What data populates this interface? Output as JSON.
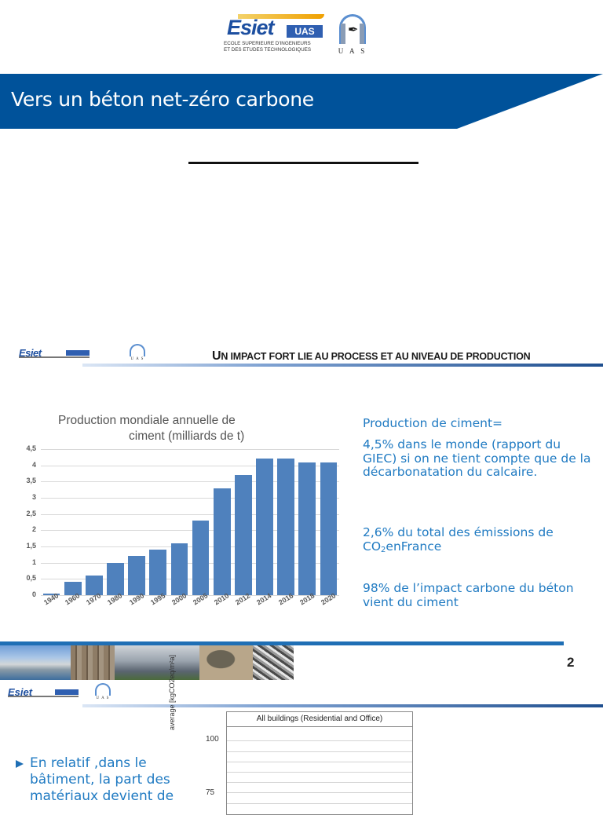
{
  "slide1": {
    "logo_esiet": {
      "word": "Esiet",
      "badge": "UAS",
      "subtitle_line1": "ECOLE SUPERIEURE D'INGENIEURS",
      "subtitle_line2": "ET DES ETUDES TECHNOLOGIQUES"
    },
    "logo_uas": {
      "letters": "U A S"
    },
    "title": "Vers un béton net-zéro carbone",
    "colors": {
      "title_band": "#00529a",
      "title_text": "#ffffff"
    }
  },
  "slide2": {
    "heading_first_letter": "U",
    "heading_rest": "N IMPACT FORT LIE AU PROCESS ET AU NIVEAU DE PRODUCTION",
    "logo_uas_letters": "U A S",
    "text_blocks": [
      {
        "line1": "Production de ciment="
      },
      {
        "text": "4,5% dans le monde (rapport du GIEC) si on ne tient compte que de la décarbonatation du calcaire."
      },
      {
        "prefix": "2,6% du total des émissions de CO",
        "subscript": "2",
        "suffix": "enFrance"
      },
      {
        "text": "98% de l’impact carbone du béton vient du ciment"
      }
    ],
    "page_number": "2",
    "footer_photos": [
      "power-plant",
      "rebar-wall",
      "bridge-viaduct",
      "aggregate-section",
      "micrograph-fibers"
    ],
    "colors": {
      "text": "#1f7ac2",
      "bars": "#4f81bd",
      "footer_bar": "#1f6fb5"
    }
  },
  "slide3": {
    "logo_uas_letters": "U A S",
    "bullet_text": "En relatif ,dans le bâtiment, la part des matériaux devient de",
    "chart_title": "All buildings (Residential and Office)",
    "y_axis_label": "average [kgCO2eq/m²a]",
    "y_ticks": [
      "100",
      "75"
    ]
  },
  "chart_data": [
    {
      "type": "bar",
      "title": "Production mondiale annuelle de ciment (milliards de t)",
      "title_line1": "Production mondiale annuelle de",
      "title_line2": "ciment (milliards de t)",
      "categories": [
        "1940",
        "1960",
        "1970",
        "1980",
        "1990",
        "1995",
        "2000",
        "2005",
        "2010",
        "2012",
        "2014",
        "2016",
        "2018",
        "2020"
      ],
      "values": [
        0.05,
        0.4,
        0.6,
        1.0,
        1.2,
        1.4,
        1.6,
        2.3,
        3.3,
        3.7,
        4.2,
        4.2,
        4.1,
        4.1
      ],
      "xlabel": "",
      "ylabel": "",
      "ylim": [
        0,
        4.5
      ],
      "y_ticks": [
        "0",
        "0,5",
        "1",
        "1,5",
        "2",
        "2,5",
        "3",
        "3,5",
        "4",
        "4,5"
      ],
      "grid": true,
      "legend": "none",
      "color": "#4f81bd"
    },
    {
      "type": "bar",
      "title": "All buildings (Residential and Office)",
      "ylabel": "average [kgCO2eq/m²a]",
      "y_ticks_visible": [
        "100",
        "75"
      ],
      "grid": true,
      "note": "partially visible (cropped at bottom of screenshot)"
    }
  ]
}
